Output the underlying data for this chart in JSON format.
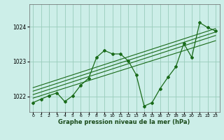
{
  "title": "Graphe pression niveau de la mer (hPa)",
  "bg_color": "#cceee8",
  "grid_color": "#99ccbb",
  "line_color": "#1a6b1a",
  "marker_color": "#1a6b1a",
  "xlim": [
    -0.5,
    23.5
  ],
  "ylim": [
    1021.55,
    1024.65
  ],
  "yticks": [
    1022,
    1023,
    1024
  ],
  "xticks": [
    0,
    1,
    2,
    3,
    4,
    5,
    6,
    7,
    8,
    9,
    10,
    11,
    12,
    13,
    14,
    15,
    16,
    17,
    18,
    19,
    20,
    21,
    22,
    23
  ],
  "series": [
    [
      0,
      1021.82
    ],
    [
      1,
      1021.92
    ],
    [
      2,
      1022.02
    ],
    [
      3,
      1022.1
    ],
    [
      4,
      1021.85
    ],
    [
      5,
      1022.02
    ],
    [
      6,
      1022.32
    ],
    [
      7,
      1022.52
    ],
    [
      8,
      1023.12
    ],
    [
      9,
      1023.32
    ],
    [
      10,
      1023.22
    ],
    [
      11,
      1023.22
    ],
    [
      12,
      1023.02
    ],
    [
      13,
      1022.62
    ],
    [
      14,
      1021.72
    ],
    [
      15,
      1021.82
    ],
    [
      16,
      1022.22
    ],
    [
      17,
      1022.55
    ],
    [
      18,
      1022.85
    ],
    [
      19,
      1023.52
    ],
    [
      20,
      1023.12
    ],
    [
      21,
      1024.12
    ],
    [
      22,
      1023.98
    ],
    [
      23,
      1023.88
    ]
  ],
  "trend_lines": [
    [
      [
        0,
        1022.05
      ],
      [
        23,
        1023.75
      ]
    ],
    [
      [
        0,
        1021.95
      ],
      [
        23,
        1023.6
      ]
    ],
    [
      [
        0,
        1022.15
      ],
      [
        23,
        1023.85
      ]
    ],
    [
      [
        0,
        1022.25
      ],
      [
        23,
        1023.95
      ]
    ]
  ]
}
